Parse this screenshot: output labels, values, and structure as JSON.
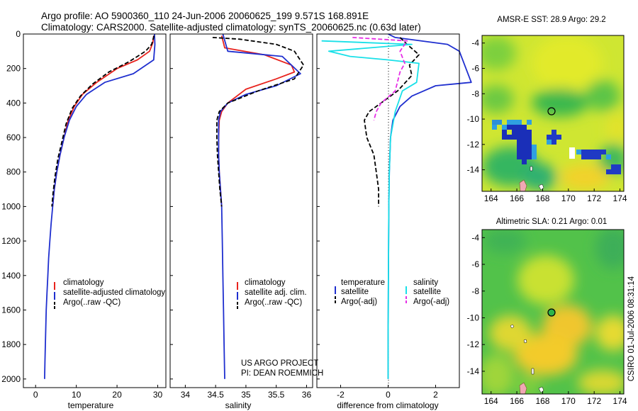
{
  "header": {
    "line1": "Argo profile: AO 5900360_110 24-Jun-2006 20060625_199 9.571S 168.891E",
    "line2": "Climatology: CARS2000. Satellite-adjusted climatology: synTS_20060625.nc (0.63d later)"
  },
  "side_label": "CSIRO 01-Jul-2006 08:31:14",
  "colors": {
    "red": "#e8231e",
    "blue": "#1f2fcf",
    "black": "#000000",
    "cyan": "#19e0e8",
    "magenta": "#e62ee6"
  },
  "chart_data": [
    {
      "id": "temperature",
      "type": "line",
      "xlabel": "temperature",
      "xlim": [
        -3,
        32
      ],
      "ylim": [
        0,
        2050
      ],
      "x_ticks": [
        0,
        10,
        20,
        30
      ],
      "y_ticks": [
        0,
        200,
        400,
        600,
        800,
        1000,
        1200,
        1400,
        1600,
        1800,
        2000
      ],
      "legend": {
        "position": "lower-right",
        "entries": [
          "climatology",
          "satellite-adjusted climatology",
          "Argo(..raw -QC)"
        ]
      },
      "series": [
        {
          "name": "climatology",
          "color": "red",
          "style": "solid",
          "points": [
            [
              29.0,
              10
            ],
            [
              28.8,
              50
            ],
            [
              28.0,
              100
            ],
            [
              25.0,
              150
            ],
            [
              20.0,
              200
            ],
            [
              15.0,
              280
            ],
            [
              11.5,
              350
            ],
            [
              9.5,
              420
            ],
            [
              8.0,
              500
            ],
            [
              7.0,
              600
            ],
            [
              6.0,
              700
            ],
            [
              5.2,
              800
            ],
            [
              4.6,
              900
            ],
            [
              4.2,
              1000
            ]
          ]
        },
        {
          "name": "satellite-adjusted climatology",
          "color": "blue",
          "style": "solid",
          "points": [
            [
              29.2,
              0
            ],
            [
              29.3,
              60
            ],
            [
              29.0,
              150
            ],
            [
              24.0,
              230
            ],
            [
              17.0,
              280
            ],
            [
              12.5,
              350
            ],
            [
              10.0,
              420
            ],
            [
              8.3,
              500
            ],
            [
              7.0,
              600
            ],
            [
              6.0,
              700
            ],
            [
              5.2,
              800
            ],
            [
              4.6,
              900
            ],
            [
              4.2,
              1000
            ],
            [
              3.8,
              1100
            ],
            [
              3.5,
              1200
            ],
            [
              3.2,
              1300
            ],
            [
              3.0,
              1400
            ],
            [
              2.8,
              1500
            ],
            [
              2.6,
              1600
            ],
            [
              2.5,
              1700
            ],
            [
              2.4,
              1800
            ],
            [
              2.3,
              1900
            ],
            [
              2.2,
              2000
            ]
          ]
        },
        {
          "name": "Argo(..raw -QC)",
          "color": "black",
          "style": "dashed",
          "points": [
            [
              29.1,
              10
            ],
            [
              28.5,
              60
            ],
            [
              27.0,
              100
            ],
            [
              23.0,
              160
            ],
            [
              18.0,
              220
            ],
            [
              14.0,
              290
            ],
            [
              11.0,
              360
            ],
            [
              9.0,
              430
            ],
            [
              7.5,
              520
            ],
            [
              6.5,
              620
            ],
            [
              5.5,
              720
            ],
            [
              4.8,
              820
            ],
            [
              4.3,
              920
            ],
            [
              4.0,
              1000
            ]
          ]
        }
      ]
    },
    {
      "id": "salinity",
      "type": "line",
      "xlabel": "salinity",
      "xlim": [
        33.75,
        36.1
      ],
      "ylim": [
        0,
        2050
      ],
      "x_ticks": [
        34,
        34.5,
        35,
        35.5,
        36
      ],
      "legend": {
        "position": "lower-right",
        "entries": [
          "climatology",
          "satellite adj. clim.",
          "Argo(..raw -QC)"
        ]
      },
      "annotation": [
        "US ARGO PROJECT",
        "PI: DEAN ROEMMICH"
      ],
      "series": [
        {
          "name": "climatology",
          "color": "red",
          "style": "solid",
          "points": [
            [
              34.6,
              10
            ],
            [
              34.65,
              80
            ],
            [
              35.3,
              120
            ],
            [
              35.75,
              180
            ],
            [
              35.8,
              220
            ],
            [
              35.5,
              260
            ],
            [
              35.0,
              320
            ],
            [
              34.7,
              400
            ],
            [
              34.6,
              450
            ],
            [
              34.56,
              500
            ],
            [
              34.55,
              600
            ],
            [
              34.55,
              700
            ],
            [
              34.56,
              800
            ],
            [
              34.58,
              900
            ],
            [
              34.6,
              1000
            ]
          ]
        },
        {
          "name": "satellite adj. clim.",
          "color": "blue",
          "style": "solid",
          "points": [
            [
              34.62,
              0
            ],
            [
              34.7,
              100
            ],
            [
              35.6,
              130
            ],
            [
              35.9,
              230
            ],
            [
              35.5,
              300
            ],
            [
              35.0,
              350
            ],
            [
              34.7,
              400
            ],
            [
              34.58,
              450
            ],
            [
              34.55,
              500
            ],
            [
              34.55,
              600
            ],
            [
              34.55,
              700
            ],
            [
              34.56,
              800
            ],
            [
              34.58,
              900
            ],
            [
              34.6,
              1000
            ],
            [
              34.61,
              1200
            ],
            [
              34.62,
              1400
            ],
            [
              34.63,
              1600
            ],
            [
              34.64,
              1800
            ],
            [
              34.65,
              2000
            ]
          ]
        },
        {
          "name": "Argo(..raw -QC)",
          "color": "black",
          "style": "dashed",
          "points": [
            [
              34.45,
              20
            ],
            [
              34.9,
              30
            ],
            [
              35.5,
              60
            ],
            [
              35.8,
              100
            ],
            [
              35.95,
              180
            ],
            [
              35.8,
              260
            ],
            [
              35.2,
              330
            ],
            [
              34.7,
              400
            ],
            [
              34.56,
              450
            ],
            [
              34.52,
              500
            ],
            [
              34.52,
              600
            ],
            [
              34.53,
              700
            ],
            [
              34.55,
              800
            ],
            [
              34.57,
              900
            ],
            [
              34.6,
              1000
            ]
          ]
        }
      ]
    },
    {
      "id": "difference",
      "type": "line",
      "xlabel": "difference from climatology",
      "xlim": [
        -3,
        3
      ],
      "ylim": [
        0,
        2050
      ],
      "x_ticks": [
        -2,
        0,
        2
      ],
      "legend": {
        "position": "lower-right",
        "headers": [
          "temperature",
          "salinity"
        ],
        "entries": [
          "satellite",
          "Argo(-adj)",
          "satellite",
          "Argo(-adj)"
        ]
      },
      "series": [
        {
          "name": "temperature satellite",
          "color": "blue",
          "style": "solid",
          "points": [
            [
              0,
              0
            ],
            [
              0.3,
              20
            ],
            [
              2.5,
              60
            ],
            [
              3.0,
              100
            ],
            [
              3.5,
              280
            ],
            [
              2.0,
              300
            ],
            [
              1.0,
              360
            ],
            [
              0.5,
              420
            ],
            [
              0.2,
              500
            ],
            [
              0.1,
              600
            ],
            [
              0.05,
              800
            ],
            [
              0.03,
              1000
            ],
            [
              0.02,
              1200
            ],
            [
              0.01,
              1500
            ],
            [
              0.0,
              1800
            ],
            [
              0.0,
              2000
            ]
          ]
        },
        {
          "name": "temperature Argo(-adj)",
          "color": "black",
          "style": "dashed",
          "points": [
            [
              0.5,
              20
            ],
            [
              0.8,
              60
            ],
            [
              1.3,
              120
            ],
            [
              0.9,
              180
            ],
            [
              1.0,
              240
            ],
            [
              0.4,
              330
            ],
            [
              -0.3,
              400
            ],
            [
              -0.8,
              450
            ],
            [
              -1.0,
              500
            ],
            [
              -0.9,
              600
            ],
            [
              -0.6,
              700
            ],
            [
              -0.5,
              800
            ],
            [
              -0.4,
              900
            ],
            [
              -0.4,
              1000
            ]
          ]
        },
        {
          "name": "salinity satellite",
          "color": "cyan",
          "style": "solid",
          "points": [
            [
              -2.8,
              40
            ],
            [
              1.0,
              60
            ],
            [
              -2.5,
              100
            ],
            [
              -1.6,
              130
            ],
            [
              0,
              150
            ],
            [
              1.3,
              170
            ],
            [
              1.2,
              280
            ],
            [
              0.6,
              330
            ],
            [
              0.3,
              450
            ],
            [
              0.1,
              600
            ],
            [
              0.05,
              800
            ],
            [
              0.03,
              1000
            ],
            [
              0.02,
              1200
            ],
            [
              0.01,
              1500
            ],
            [
              0.0,
              1800
            ],
            [
              0.0,
              2000
            ]
          ]
        },
        {
          "name": "salinity Argo(-adj)",
          "color": "magenta",
          "style": "dashed",
          "points": [
            [
              -1.5,
              20
            ],
            [
              0.8,
              40
            ],
            [
              0.5,
              100
            ],
            [
              0.7,
              170
            ],
            [
              0.5,
              220
            ],
            [
              0.3,
              330
            ],
            [
              -0.3,
              400
            ],
            [
              -0.5,
              450
            ],
            [
              -0.6,
              500
            ]
          ]
        }
      ]
    }
  ],
  "maps": [
    {
      "id": "sst",
      "title": "AMSR-E SST: 28.9 Argo: 29.2",
      "x_ticks": [
        164,
        166,
        168,
        170,
        172,
        174
      ],
      "y_ticks": [
        -4,
        -6,
        -8,
        -10,
        -12,
        -14
      ],
      "xlim": [
        163.3,
        174.3
      ],
      "ylim": [
        -15.7,
        -3.4
      ]
    },
    {
      "id": "sla",
      "title": "Altimetric SLA: 0.21 Argo: 0.01",
      "x_ticks": [
        164,
        166,
        168,
        170,
        172,
        174
      ],
      "y_ticks": [
        -4,
        -6,
        -8,
        -10,
        -12,
        -14
      ],
      "xlim": [
        163.3,
        174.3
      ],
      "ylim": [
        -15.7,
        -3.4
      ]
    }
  ],
  "float_position": {
    "lon": 168.891,
    "lat": -9.571
  }
}
